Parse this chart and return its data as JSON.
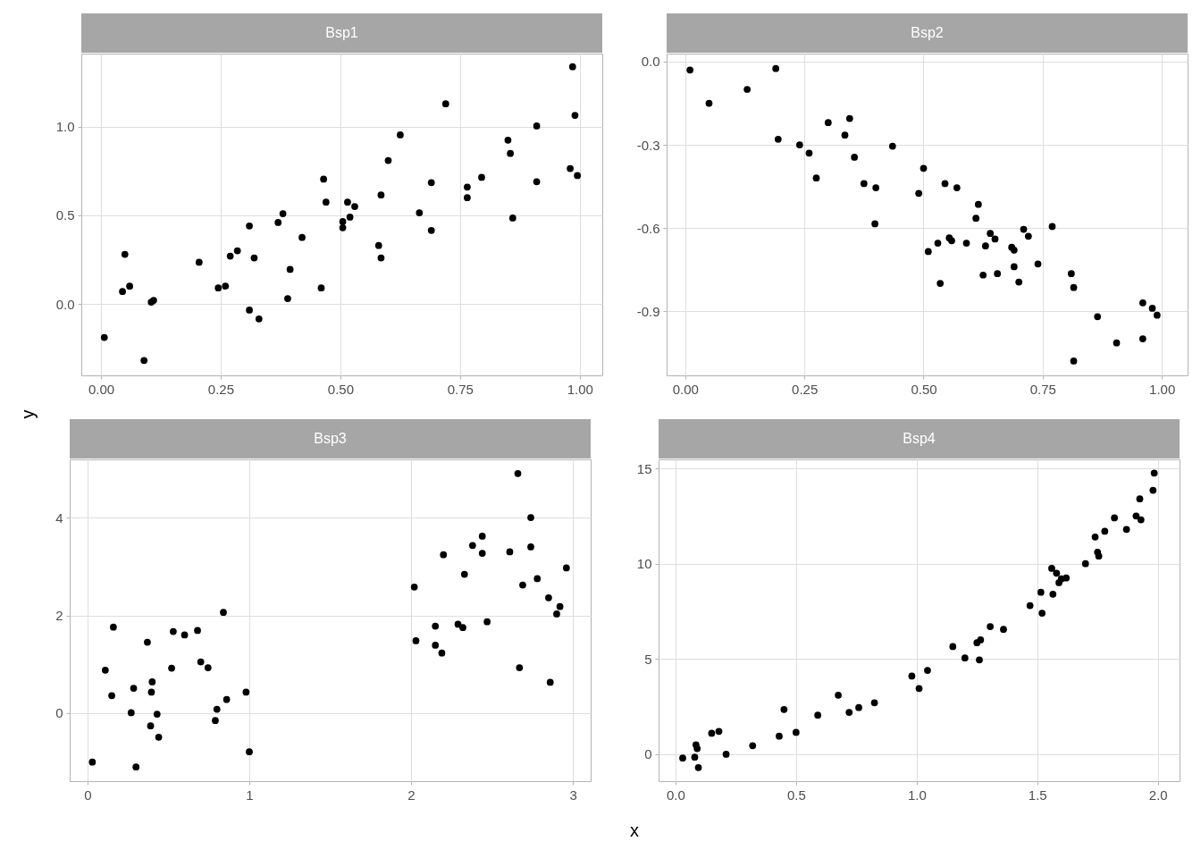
{
  "chart_data": [
    {
      "type": "scatter",
      "title": "Bsp1",
      "ylabel": "y",
      "grid": true,
      "marker": "circle",
      "xlim": [
        -0.041,
        1.047
      ],
      "ylim": [
        -0.404,
        1.414
      ],
      "xticks": [
        {
          "value": 0,
          "label": "0.00"
        },
        {
          "value": 0.25,
          "label": "0.25"
        },
        {
          "value": 0.5,
          "label": "0.50"
        },
        {
          "value": 0.75,
          "label": "0.75"
        },
        {
          "value": 1,
          "label": "1.00"
        }
      ],
      "yticks": [
        {
          "value": 0,
          "label": "0.0"
        },
        {
          "value": 0.5,
          "label": "0.5"
        },
        {
          "value": 1,
          "label": "1.0"
        }
      ],
      "series": [
        {
          "color": "#000000",
          "x": [
            0.007,
            0.045,
            0.05,
            0.06,
            0.09,
            0.105,
            0.11,
            0.205,
            0.245,
            0.26,
            0.27,
            0.285,
            0.31,
            0.31,
            0.32,
            0.33,
            0.37,
            0.38,
            0.39,
            0.395,
            0.42,
            0.46,
            0.465,
            0.47,
            0.505,
            0.505,
            0.515,
            0.52,
            0.53,
            0.58,
            0.585,
            0.585,
            0.6,
            0.625,
            0.665,
            0.69,
            0.69,
            0.72,
            0.765,
            0.765,
            0.795,
            0.85,
            0.855,
            0.86,
            0.91,
            0.91,
            0.98,
            0.985,
            0.99,
            0.995
          ],
          "values": [
            -0.19,
            0.07,
            0.28,
            0.1,
            -0.32,
            0.01,
            0.02,
            0.235,
            0.09,
            0.1,
            0.27,
            0.3,
            -0.035,
            0.44,
            0.26,
            -0.085,
            0.46,
            0.51,
            0.03,
            0.195,
            0.375,
            0.09,
            0.705,
            0.575,
            0.43,
            0.465,
            0.575,
            0.49,
            0.55,
            0.33,
            0.615,
            0.26,
            0.81,
            0.955,
            0.515,
            0.685,
            0.415,
            1.13,
            0.6,
            0.66,
            0.715,
            0.925,
            0.85,
            0.485,
            0.69,
            1.005,
            0.765,
            1.34,
            1.065,
            0.725
          ]
        }
      ]
    },
    {
      "type": "scatter",
      "title": "Bsp2",
      "grid": true,
      "marker": "circle",
      "xlim": [
        -0.039,
        1.054
      ],
      "ylim": [
        -1.132,
        0.029
      ],
      "xticks": [
        {
          "value": 0,
          "label": "0.00"
        },
        {
          "value": 0.25,
          "label": "0.25"
        },
        {
          "value": 0.5,
          "label": "0.50"
        },
        {
          "value": 0.75,
          "label": "0.75"
        },
        {
          "value": 1,
          "label": "1.00"
        }
      ],
      "yticks": [
        {
          "value": 0,
          "label": "0.0"
        },
        {
          "value": -0.3,
          "label": "-0.3"
        },
        {
          "value": -0.6,
          "label": "-0.6"
        },
        {
          "value": -0.9,
          "label": "-0.9"
        }
      ],
      "series": [
        {
          "color": "#000000",
          "x": [
            0.01,
            0.05,
            0.13,
            0.19,
            0.195,
            0.24,
            0.26,
            0.275,
            0.3,
            0.335,
            0.345,
            0.355,
            0.375,
            0.4,
            0.398,
            0.435,
            0.49,
            0.5,
            0.51,
            0.53,
            0.535,
            0.545,
            0.554,
            0.559,
            0.57,
            0.59,
            0.61,
            0.615,
            0.625,
            0.63,
            0.64,
            0.65,
            0.655,
            0.685,
            0.69,
            0.69,
            0.7,
            0.71,
            0.72,
            0.74,
            0.77,
            0.81,
            0.815,
            0.815,
            0.865,
            0.905,
            0.96,
            0.96,
            0.98,
            0.99
          ],
          "values": [
            -0.03,
            -0.15,
            -0.1,
            -0.025,
            -0.28,
            -0.3,
            -0.33,
            -0.42,
            -0.22,
            -0.265,
            -0.205,
            -0.345,
            -0.44,
            -0.455,
            -0.585,
            -0.305,
            -0.475,
            -0.385,
            -0.685,
            -0.655,
            -0.8,
            -0.44,
            -0.636,
            -0.646,
            -0.455,
            -0.655,
            -0.565,
            -0.515,
            -0.77,
            -0.665,
            -0.62,
            -0.64,
            -0.765,
            -0.67,
            -0.74,
            -0.68,
            -0.795,
            -0.605,
            -0.63,
            -0.73,
            -0.595,
            -0.765,
            -0.815,
            -1.08,
            -0.92,
            -1.015,
            -0.87,
            -1.0,
            -0.89,
            -0.915
          ]
        }
      ]
    },
    {
      "type": "scatter",
      "title": "Bsp3",
      "xlabel": "x",
      "grid": true,
      "marker": "circle",
      "xlim": [
        -0.11,
        3.11
      ],
      "ylim": [
        -1.39,
        5.19
      ],
      "xticks": [
        0,
        1,
        2,
        3
      ],
      "yticks": [
        0,
        2,
        4
      ],
      "series": [
        {
          "color": "#000000",
          "x": [
            0.03,
            0.11,
            0.15,
            0.16,
            0.27,
            0.285,
            0.3,
            0.37,
            0.39,
            0.395,
            0.4,
            0.43,
            0.44,
            0.52,
            0.53,
            0.6,
            0.68,
            0.7,
            0.745,
            0.79,
            0.8,
            0.84,
            0.86,
            0.98,
            1.0,
            2.02,
            2.03,
            2.15,
            2.15,
            2.19,
            2.2,
            2.29,
            2.32,
            2.33,
            2.38,
            2.44,
            2.44,
            2.47,
            2.61,
            2.66,
            2.67,
            2.69,
            2.74,
            2.74,
            2.78,
            2.85,
            2.86,
            2.9,
            2.92,
            2.96
          ],
          "values": [
            -1.0,
            0.88,
            0.36,
            1.76,
            0.01,
            0.51,
            -1.1,
            1.45,
            -0.26,
            0.43,
            0.64,
            -0.02,
            -0.49,
            0.92,
            1.67,
            1.6,
            1.69,
            1.05,
            0.93,
            -0.15,
            0.08,
            2.06,
            0.28,
            0.43,
            -0.79,
            2.58,
            1.48,
            1.78,
            1.39,
            1.23,
            3.24,
            1.82,
            1.75,
            2.84,
            3.43,
            3.27,
            3.62,
            1.87,
            3.3,
            4.9,
            0.93,
            2.62,
            3.4,
            4.0,
            2.75,
            2.36,
            0.63,
            2.03,
            2.18,
            2.97
          ]
        }
      ]
    },
    {
      "type": "scatter",
      "title": "Bsp4",
      "grid": true,
      "marker": "circle",
      "xlim": [
        -0.07,
        2.09
      ],
      "ylim": [
        -1.41,
        15.47
      ],
      "xticks": [
        {
          "value": 0,
          "label": "0.0"
        },
        {
          "value": 0.5,
          "label": "0.5"
        },
        {
          "value": 1,
          "label": "1.0"
        },
        {
          "value": 1.5,
          "label": "1.5"
        },
        {
          "value": 2,
          "label": "2.0"
        }
      ],
      "yticks": [
        0,
        5,
        10,
        15
      ],
      "series": [
        {
          "color": "#000000",
          "x": [
            0.03,
            0.08,
            0.085,
            0.09,
            0.095,
            0.15,
            0.18,
            0.21,
            0.32,
            0.43,
            0.45,
            0.5,
            0.59,
            0.675,
            0.72,
            0.76,
            0.825,
            0.98,
            1.01,
            1.045,
            1.15,
            1.2,
            1.25,
            1.26,
            1.265,
            1.305,
            1.36,
            1.47,
            1.515,
            1.52,
            1.56,
            1.565,
            1.58,
            1.59,
            1.6,
            1.62,
            1.7,
            1.74,
            1.75,
            1.755,
            1.78,
            1.82,
            1.87,
            1.91,
            1.925,
            1.93,
            1.98,
            1.985
          ],
          "values": [
            -0.2,
            -0.15,
            0.5,
            0.3,
            -0.7,
            1.1,
            1.2,
            0.0,
            0.45,
            0.95,
            2.35,
            1.15,
            2.05,
            3.1,
            2.2,
            2.45,
            2.7,
            4.1,
            3.45,
            4.4,
            5.65,
            5.05,
            5.85,
            4.95,
            6.0,
            6.7,
            6.55,
            7.8,
            8.5,
            7.4,
            9.75,
            8.4,
            9.5,
            9.0,
            9.2,
            9.25,
            10.0,
            11.4,
            10.6,
            10.4,
            11.7,
            12.4,
            11.8,
            12.5,
            13.4,
            12.3,
            13.85,
            14.75
          ]
        }
      ]
    }
  ]
}
